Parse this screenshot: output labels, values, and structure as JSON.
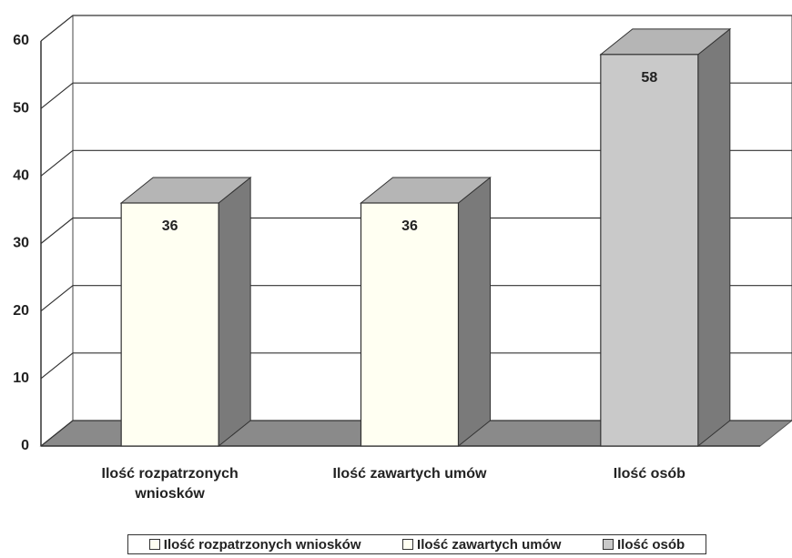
{
  "chart_data": {
    "type": "bar3d",
    "categories": [
      "Ilość rozpatrzonych wniosków",
      "Ilość zawartych umów",
      "Ilość osób"
    ],
    "values": [
      36,
      36,
      58
    ],
    "colors": [
      "#fffff2",
      "#fffff2",
      "#c9c9c9"
    ],
    "ylim": [
      0,
      60
    ],
    "yticks": [
      0,
      10,
      20,
      30,
      40,
      50,
      60
    ],
    "grid": true,
    "legend": "bottom"
  }
}
